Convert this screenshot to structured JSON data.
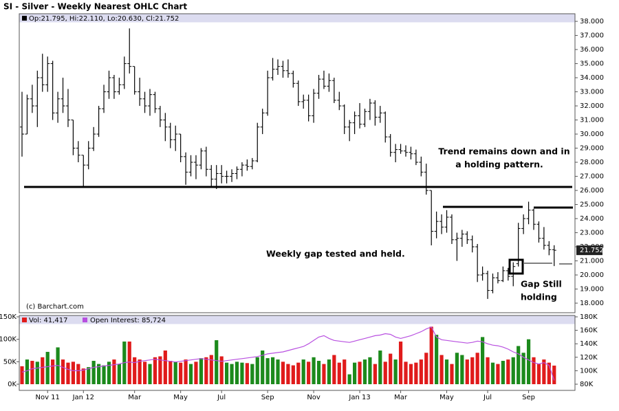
{
  "chart_data": [
    {
      "type": "ohlc",
      "title": "SI - Silver - Weekly Nearest OHLC Chart",
      "info": "Op:21.795, Hi:22.110, Lo:20.630, Cl:21.752",
      "credit": "(c) Barchart.com",
      "last_close_label": "21.752",
      "annotations": [
        "Trend remains down and in",
        "a holding pattern.",
        "Weekly gap tested and held.",
        "Gap Still",
        "holding"
      ],
      "color": "#000000",
      "open": [
        30.5,
        30,
        32.5,
        32,
        34,
        33.5,
        35,
        31.5,
        32.5,
        32,
        31,
        29,
        28.5,
        27.8,
        29,
        30,
        31.8,
        33,
        34,
        33,
        33.5,
        35,
        34.8,
        33,
        32.5,
        32,
        32.8,
        31.8,
        31,
        30.5,
        29.6,
        30,
        28.4,
        27.3,
        28,
        27.8,
        28.8,
        27.5,
        26.8,
        27.2,
        27,
        27,
        27.2,
        27.5,
        27.8,
        27.7,
        28.1,
        30.5,
        31.5,
        34,
        34.6,
        34.8,
        34.5,
        34.3,
        33.6,
        32.3,
        32.4,
        31.3,
        32.9,
        33.9,
        33.4,
        33.8,
        32.4,
        32,
        30.5,
        30.8,
        31.3,
        30.7,
        31.6,
        32.2,
        31.2,
        31.5,
        29.8,
        28.7,
        28.9,
        28.8,
        28.7,
        28.6,
        28,
        27.3,
        26,
        23.1,
        23.8,
        23.4,
        24.1,
        22.5,
        22.6,
        22.9,
        22.5,
        22,
        20,
        20.1,
        18.9,
        19.8,
        19.6,
        20.3,
        19.9,
        20.8,
        23.3,
        24,
        24.6,
        23.6,
        22.6,
        22.1,
        21.795
      ],
      "high": [
        33,
        32.8,
        33.5,
        34.5,
        35.7,
        35.5,
        35.2,
        33,
        34,
        33.2,
        31,
        29.5,
        28.5,
        29.5,
        30.5,
        32,
        33.5,
        34.5,
        34.2,
        34,
        35.5,
        37.5,
        34.8,
        34,
        33,
        33.2,
        33,
        32,
        31.5,
        30.8,
        30.6,
        30,
        28.7,
        28.5,
        28.5,
        29,
        29.1,
        27.8,
        27.8,
        27.8,
        27.4,
        27.5,
        27.7,
        28,
        28.2,
        28.3,
        30.8,
        31.8,
        34.5,
        35.4,
        35.3,
        35.2,
        35.3,
        34.5,
        33.8,
        32.8,
        32.8,
        33.2,
        34.2,
        34.5,
        34.3,
        34,
        33,
        32.1,
        31,
        31.6,
        32.2,
        31.8,
        32.5,
        32.4,
        32,
        31.6,
        30,
        29.3,
        29.3,
        29.2,
        29.1,
        28.9,
        28.4,
        27.9,
        26,
        24.5,
        24.3,
        24.6,
        24.3,
        23,
        23.2,
        23.1,
        22.8,
        22.2,
        20.6,
        20.3,
        20.1,
        20.2,
        20.6,
        20.5,
        20.9,
        23.7,
        24.3,
        25.2,
        24.7,
        23.8,
        23.4,
        22.4,
        22.11
      ],
      "low": [
        28.4,
        30,
        31.5,
        30.5,
        33,
        33,
        31,
        30.8,
        31.5,
        30.5,
        28.5,
        28,
        26.2,
        27.5,
        28.8,
        29.8,
        31.5,
        32.5,
        32.5,
        32.8,
        33.2,
        34.3,
        32.8,
        32,
        31.5,
        31.3,
        31.5,
        30.5,
        29.5,
        29,
        28.8,
        28,
        26.4,
        27,
        26.8,
        27.5,
        27,
        26.3,
        26.1,
        26.5,
        26.5,
        26.6,
        26.8,
        27,
        27.4,
        27.5,
        28,
        30,
        31.3,
        33.8,
        34.2,
        34,
        34,
        33.3,
        32,
        31.8,
        30.9,
        30.8,
        32.5,
        33.2,
        33,
        32.2,
        31.7,
        30,
        29.5,
        30,
        30.4,
        30.5,
        31,
        30.6,
        30.8,
        29.4,
        28.4,
        28,
        28.6,
        28.4,
        28.2,
        27.8,
        27,
        25.7,
        22.1,
        22.6,
        22.9,
        23,
        22.2,
        21,
        22,
        22.2,
        21.6,
        19.5,
        19.6,
        18.3,
        18.7,
        19.4,
        19.5,
        19.6,
        19.2,
        20.6,
        22.9,
        23.6,
        23.2,
        22.3,
        21.8,
        21.4,
        20.63
      ],
      "close": [
        30,
        32.5,
        32,
        34,
        33.5,
        35,
        31.5,
        32.5,
        32,
        31,
        29,
        28.5,
        27.8,
        29,
        30,
        31.8,
        33,
        34,
        33,
        33.5,
        35,
        34.8,
        33,
        32.5,
        32,
        32.8,
        31.8,
        31,
        30.5,
        29.6,
        30,
        28.4,
        27.3,
        28,
        27.8,
        28.8,
        27.5,
        26.8,
        27.2,
        27,
        27,
        27.2,
        27.5,
        27.8,
        27.7,
        28.1,
        30.5,
        31.5,
        34,
        34.6,
        34.8,
        34.5,
        34.3,
        33.6,
        32.3,
        32.4,
        31.3,
        32.9,
        33.9,
        33.4,
        33.8,
        32.4,
        32,
        30.5,
        30.8,
        31.3,
        30.7,
        31.6,
        32.2,
        31.2,
        31.5,
        29.8,
        28.7,
        28.9,
        28.8,
        28.7,
        28.6,
        28,
        27.3,
        26,
        23.1,
        23.8,
        23.4,
        24.1,
        22.5,
        22.6,
        22.9,
        22.5,
        22,
        20,
        20.1,
        18.9,
        19.8,
        19.6,
        20.3,
        19.9,
        20.6,
        23.3,
        24,
        24.6,
        23.6,
        22.6,
        22.1,
        21.8,
        21.752
      ],
      "ylim": [
        17.32,
        38.54
      ],
      "yticks": [
        {
          "value": 18,
          "label": "18.000"
        },
        {
          "value": 19,
          "label": "19.000"
        },
        {
          "value": 20,
          "label": "20.000"
        },
        {
          "value": 21,
          "label": "21.000"
        },
        {
          "value": 22,
          "label": "22.000"
        },
        {
          "value": 23,
          "label": "23.000"
        },
        {
          "value": 24,
          "label": "24.000"
        },
        {
          "value": 25,
          "label": "25.000"
        },
        {
          "value": 26,
          "label": "26.000"
        },
        {
          "value": 27,
          "label": "27.000"
        },
        {
          "value": 28,
          "label": "28.000"
        },
        {
          "value": 29,
          "label": "29.000"
        },
        {
          "value": 30,
          "label": "30.000"
        },
        {
          "value": 31,
          "label": "31.000"
        },
        {
          "value": 32,
          "label": "32.000"
        },
        {
          "value": 33,
          "label": "33.000"
        },
        {
          "value": 34,
          "label": "34.000"
        },
        {
          "value": 35,
          "label": "35.000"
        },
        {
          "value": 36,
          "label": "36.000"
        },
        {
          "value": 37,
          "label": "37.000"
        },
        {
          "value": 38,
          "label": "38.000"
        }
      ]
    },
    {
      "type": "bar",
      "categories": [
        null,
        null,
        null,
        null,
        null,
        "Nov 11",
        null,
        null,
        null,
        null,
        null,
        null,
        "Jan 12",
        null,
        null,
        null,
        null,
        null,
        null,
        null,
        null,
        null,
        "Mar",
        null,
        null,
        null,
        null,
        null,
        null,
        null,
        null,
        "May",
        null,
        null,
        null,
        null,
        null,
        null,
        null,
        "Jul",
        null,
        null,
        null,
        null,
        null,
        null,
        null,
        null,
        "Sep",
        null,
        null,
        null,
        null,
        null,
        null,
        null,
        null,
        "Nov",
        null,
        null,
        null,
        null,
        null,
        null,
        null,
        null,
        "Jan 13",
        null,
        null,
        null,
        null,
        null,
        null,
        null,
        "Mar",
        null,
        null,
        null,
        null,
        null,
        null,
        null,
        null,
        "May",
        null,
        null,
        null,
        null,
        null,
        null,
        null,
        "Jul",
        null,
        null,
        null,
        null,
        null,
        null,
        null,
        "Sep",
        null,
        null,
        null,
        null,
        null
      ],
      "series": [
        {
          "name": "Vol: 41,417",
          "color": "#e01b1b",
          "up_color": "#1c8a1c",
          "values": [
            40000,
            55000,
            52000,
            50000,
            60000,
            72000,
            55000,
            82000,
            55000,
            48000,
            50000,
            45000,
            35000,
            38000,
            52000,
            45000,
            42000,
            50000,
            55000,
            45000,
            95000,
            95000,
            60000,
            55000,
            50000,
            45000,
            60000,
            62000,
            75000,
            52000,
            50000,
            48000,
            55000,
            45000,
            50000,
            58000,
            60000,
            65000,
            98000,
            62000,
            48000,
            45000,
            50000,
            48000,
            47000,
            45000,
            60000,
            75000,
            58000,
            60000,
            55000,
            50000,
            45000,
            42000,
            48000,
            55000,
            50000,
            60000,
            52000,
            45000,
            55000,
            65000,
            48000,
            55000,
            22000,
            48000,
            50000,
            55000,
            60000,
            45000,
            75000,
            50000,
            68000,
            55000,
            95000,
            50000,
            45000,
            48000,
            55000,
            70000,
            128000,
            110000,
            65000,
            55000,
            45000,
            70000,
            65000,
            55000,
            60000,
            70000,
            105000,
            60000,
            48000,
            45000,
            52000,
            55000,
            60000,
            85000,
            70000,
            100000,
            60000,
            45000,
            55000,
            48000,
            41417
          ]
        },
        {
          "name": "Open Interest: 85,724",
          "color": "#b84fe0",
          "axis": "y2",
          "values": [
            98000,
            100000,
            103000,
            104000,
            105000,
            106000,
            107000,
            108000,
            105000,
            102000,
            100000,
            100000,
            101000,
            103000,
            105000,
            106000,
            107000,
            108000,
            109000,
            110000,
            112000,
            113000,
            112000,
            114000,
            115000,
            116000,
            117000,
            116000,
            115000,
            114000,
            113000,
            114000,
            115000,
            116000,
            117000,
            118000,
            117000,
            116000,
            115000,
            114000,
            115000,
            116000,
            117000,
            118000,
            119000,
            120000,
            121000,
            123000,
            125000,
            126000,
            127000,
            128000,
            130000,
            132000,
            134000,
            136000,
            140000,
            145000,
            150000,
            152000,
            148000,
            145000,
            144000,
            143000,
            142000,
            144000,
            146000,
            148000,
            150000,
            152000,
            153000,
            155000,
            154000,
            150000,
            148000,
            150000,
            152000,
            155000,
            158000,
            162000,
            165000,
            150000,
            146000,
            145000,
            144000,
            143000,
            142000,
            141000,
            142000,
            144000,
            143000,
            140000,
            138000,
            137000,
            135000,
            132000,
            128000,
            125000,
            120000,
            116000,
            112000,
            110000,
            112000,
            108000,
            85724
          ]
        }
      ],
      "ylim": [
        0,
        150000
      ],
      "yticks": [
        {
          "value": 0,
          "label": "0K"
        },
        {
          "value": 50000,
          "label": "50K"
        },
        {
          "value": 100000,
          "label": "100K"
        },
        {
          "value": 150000,
          "label": "150K"
        }
      ],
      "y2lim": [
        80000,
        180000
      ],
      "y2ticks": [
        {
          "value": 80000,
          "label": "80K"
        },
        {
          "value": 100000,
          "label": "100K"
        },
        {
          "value": 120000,
          "label": "120K"
        },
        {
          "value": 140000,
          "label": "140K"
        },
        {
          "value": 160000,
          "label": "160K"
        },
        {
          "value": 180000,
          "label": "180K"
        }
      ]
    }
  ]
}
